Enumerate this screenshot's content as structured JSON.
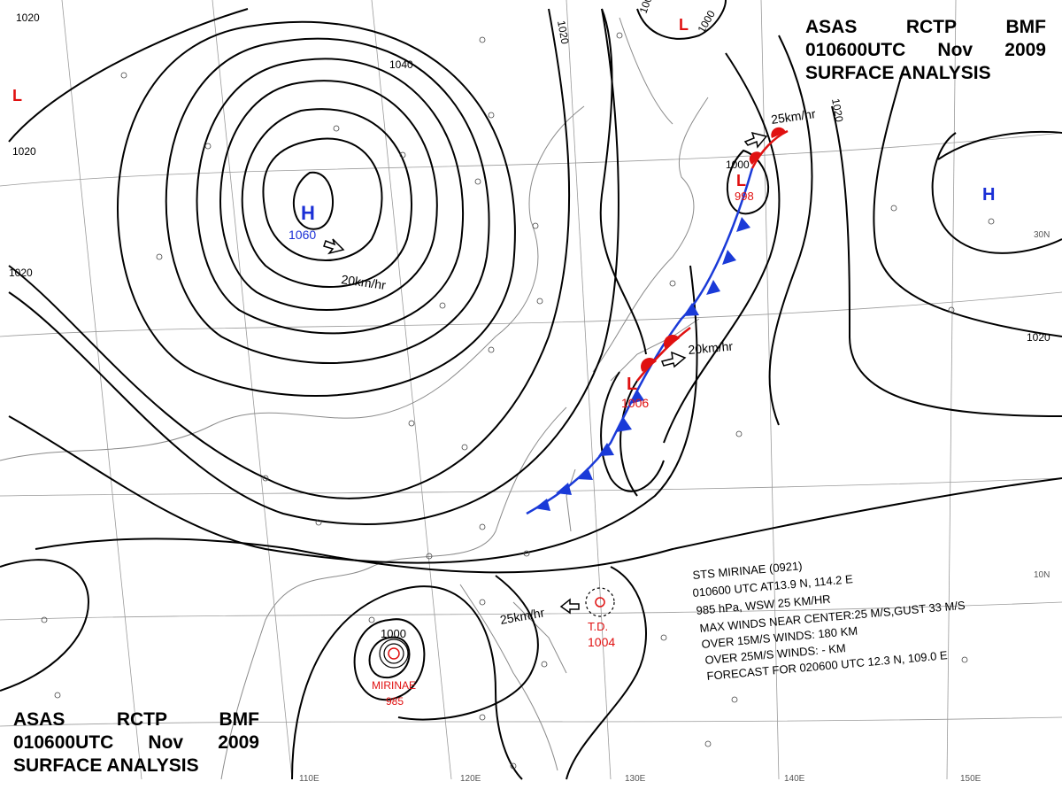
{
  "header": {
    "line1": [
      "ASAS",
      "RCTP",
      "BMF"
    ],
    "line2": [
      "010600UTC",
      "Nov",
      "2009"
    ],
    "line3": "SURFACE  ANALYSIS"
  },
  "isobars": {
    "labels": [
      "1020",
      "1020",
      "1020",
      "1020",
      "1020",
      "1040",
      "1000",
      "1000",
      "1020",
      "1000"
    ]
  },
  "pressure_systems": {
    "high_main": {
      "symbol": "H",
      "value": "1060",
      "motion": "20km/hr"
    },
    "high_east": {
      "symbol": "H"
    },
    "low_ne": {
      "symbol": "L",
      "value": "998",
      "motion": "25km/hr"
    },
    "low_japan": {
      "symbol": "L",
      "value": "1006",
      "motion": "20km/hr"
    },
    "low_nw": {
      "symbol": "L"
    },
    "low_north": {
      "symbol": "L"
    },
    "typhoon": {
      "name": "MIRINAE",
      "value": "985",
      "isobar": "1000"
    },
    "tropical_depression": {
      "name": "T.D.",
      "value": "1004",
      "motion": "25km/hr"
    }
  },
  "storm_info": {
    "line1": "STS  MIRINAE  (0921)",
    "line2": "010600 UTC  AT13.9 N, 114.2 E",
    "line3": "985 hPa, WSW  25 KM/HR",
    "line4": "MAX WINDS NEAR CENTER:25 M/S,GUST 33 M/S",
    "line5": "OVER 15M/S WINDS: 180 KM",
    "line6": "OVER 25M/S WINDS: - KM",
    "line7": "FORECAST FOR 020600 UTC 12.3 N, 109.0 E"
  },
  "grid_labels": {
    "lon": [
      "110E",
      "120E",
      "130E",
      "140E",
      "150E"
    ],
    "lat": [
      "30N",
      "10N"
    ]
  },
  "colors": {
    "isobar": "#000000",
    "high": "#1a2fd6",
    "low": "#e01010",
    "cold_front": "#1a3ad8",
    "warm_front": "#e01010",
    "graticule": "#9a9a9a",
    "coast": "#8a8a8a"
  }
}
